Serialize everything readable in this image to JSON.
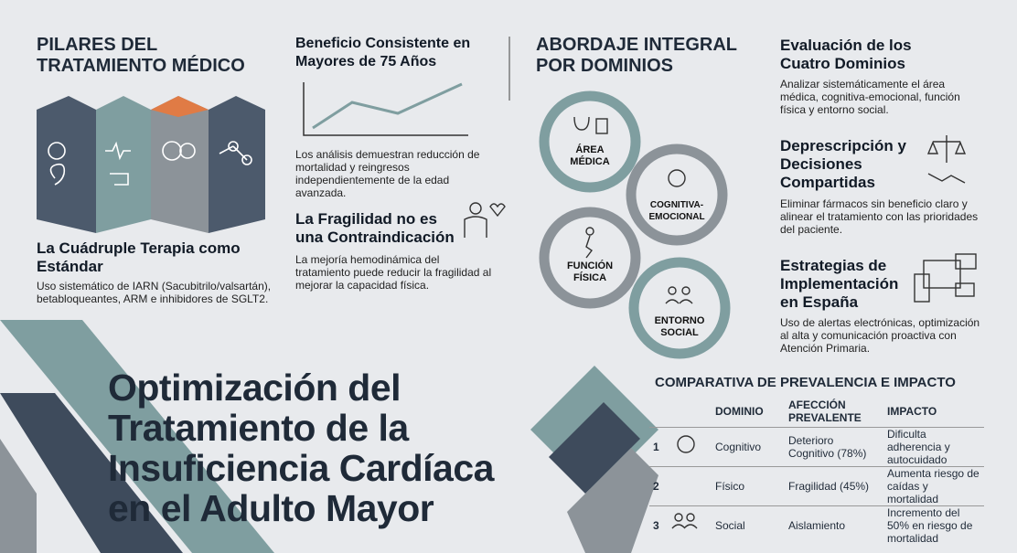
{
  "pillars": {
    "title": "PILARES DEL TRATAMIENTO MÉDICO",
    "subtitle": "La Cuádruple Terapia como Estándar",
    "text": "Uso sistemático de IARN (Sacubitrilo/valsartán), betabloqueantes, ARM e inhibidores de SGLT2."
  },
  "benefit": {
    "title": "Beneficio Consistente en Mayores de 75 Años",
    "text": "Los análisis demuestran reducción de mortalidad y reingresos independientemente de la edad avanzada."
  },
  "frailty": {
    "title": "La Fragilidad no es una Contraindicación",
    "text": "La mejoría hemodinámica del tratamiento puede reducir la fragilidad al mejorar la capacidad física."
  },
  "main_title": "Optimización del Tratamiento de la Insuficiencia Cardíaca en el Adulto Mayor",
  "approach": {
    "title": "ABORDAJE INTEGRAL POR DOMINIOS",
    "domains": [
      "ÁREA MÉDICA",
      "COGNITIVA-EMOCIONAL",
      "FUNCIÓN FÍSICA",
      "ENTORNO SOCIAL"
    ]
  },
  "sections": [
    {
      "title": "Evaluación de los Cuatro Dominios",
      "text": "Analizar sistemáticamente el área médica, cognitiva-emocional, función física y entorno social."
    },
    {
      "title": "Deprescripción y Decisiones Compartidas",
      "text": "Eliminar fármacos sin beneficio claro y alinear el tratamiento con las prioridades del paciente."
    },
    {
      "title": "Estrategias de Implementación en España",
      "text": "Uso de alertas electrónicas, optimización al alta y comunicación proactiva con Atención Primaria."
    }
  ],
  "table": {
    "title": "COMPARATIVA DE PREVALENCIA E IMPACTO",
    "headers": [
      "DOMINIO",
      "AFECCIÓN PREVALENTE",
      "IMPACTO"
    ],
    "rows": [
      [
        1,
        "Cognitivo",
        "Deterioro Cognitivo (78%)",
        "Dificulta adherencia y autocuidado"
      ],
      [
        2,
        "Físico",
        "Fragilidad (45%)",
        "Aumenta riesgo de caídas y mortalidad"
      ],
      [
        3,
        "Social",
        "Aislamiento",
        "Incremento del 50% en riesgo de mortalidad"
      ]
    ]
  }
}
